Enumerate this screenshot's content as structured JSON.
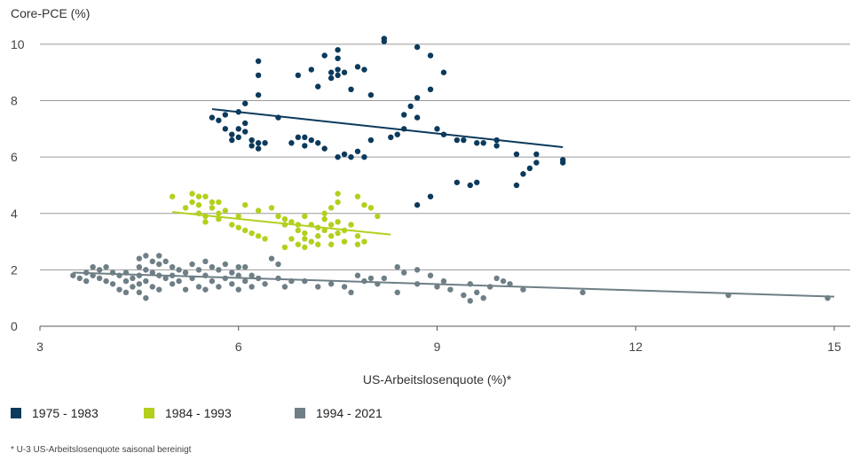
{
  "chart_data": {
    "type": "scatter",
    "title": "",
    "ylabel": "Core-PCE (%)",
    "xlabel": "US-Arbeitslosenquote (%)*",
    "footnote": "* U-3 US-Arbeitslosenquote saisonal bereinigt",
    "xlim": [
      3,
      15
    ],
    "ylim": [
      0,
      10.5
    ],
    "xticks": [
      "3",
      "6",
      "9",
      "12",
      "15"
    ],
    "yticks": [
      "0",
      "2",
      "4",
      "6",
      "8",
      "10"
    ],
    "grid": "horizontal",
    "legend_position": "bottom-left",
    "series": [
      {
        "name": "1975 - 1983",
        "color": "#0b3a5c",
        "trendline": [
          [
            5.6,
            7.7
          ],
          [
            10.9,
            6.35
          ]
        ],
        "points": [
          [
            5.6,
            7.4
          ],
          [
            5.7,
            7.3
          ],
          [
            5.8,
            7.5
          ],
          [
            5.8,
            7.0
          ],
          [
            5.9,
            6.8
          ],
          [
            5.9,
            6.6
          ],
          [
            6.0,
            7.6
          ],
          [
            6.0,
            7.0
          ],
          [
            6.0,
            6.7
          ],
          [
            6.1,
            7.9
          ],
          [
            6.1,
            7.2
          ],
          [
            6.1,
            6.9
          ],
          [
            6.2,
            6.6
          ],
          [
            6.2,
            6.4
          ],
          [
            6.3,
            6.5
          ],
          [
            6.3,
            6.3
          ],
          [
            6.3,
            8.2
          ],
          [
            6.3,
            8.9
          ],
          [
            6.3,
            9.4
          ],
          [
            6.4,
            6.5
          ],
          [
            6.6,
            7.4
          ],
          [
            6.8,
            6.5
          ],
          [
            6.9,
            6.7
          ],
          [
            6.9,
            8.9
          ],
          [
            7.0,
            6.4
          ],
          [
            7.0,
            6.7
          ],
          [
            7.1,
            6.6
          ],
          [
            7.1,
            9.1
          ],
          [
            7.2,
            6.5
          ],
          [
            7.2,
            8.5
          ],
          [
            7.3,
            9.6
          ],
          [
            7.3,
            6.3
          ],
          [
            7.4,
            9.0
          ],
          [
            7.4,
            8.8
          ],
          [
            7.5,
            9.8
          ],
          [
            7.5,
            9.5
          ],
          [
            7.5,
            9.1
          ],
          [
            7.5,
            8.9
          ],
          [
            7.5,
            6.0
          ],
          [
            7.6,
            6.1
          ],
          [
            7.6,
            9.0
          ],
          [
            7.7,
            6.0
          ],
          [
            7.7,
            8.4
          ],
          [
            7.8,
            9.2
          ],
          [
            7.8,
            6.2
          ],
          [
            7.9,
            6.0
          ],
          [
            7.9,
            9.1
          ],
          [
            8.0,
            8.2
          ],
          [
            8.0,
            6.6
          ],
          [
            8.2,
            10.2
          ],
          [
            8.2,
            10.1
          ],
          [
            8.3,
            6.7
          ],
          [
            8.4,
            6.8
          ],
          [
            8.5,
            7.5
          ],
          [
            8.5,
            7.0
          ],
          [
            8.6,
            7.8
          ],
          [
            8.7,
            7.4
          ],
          [
            8.7,
            8.1
          ],
          [
            8.7,
            9.9
          ],
          [
            8.9,
            8.4
          ],
          [
            8.9,
            9.6
          ],
          [
            9.0,
            7.0
          ],
          [
            9.1,
            9.0
          ],
          [
            9.1,
            6.8
          ],
          [
            9.3,
            6.6
          ],
          [
            9.4,
            6.6
          ],
          [
            9.6,
            6.5
          ],
          [
            9.7,
            6.5
          ],
          [
            9.9,
            6.6
          ],
          [
            9.9,
            6.4
          ],
          [
            10.2,
            6.1
          ],
          [
            10.2,
            5.0
          ],
          [
            10.3,
            5.4
          ],
          [
            10.4,
            5.6
          ],
          [
            10.5,
            6.1
          ],
          [
            10.5,
            5.8
          ],
          [
            10.9,
            5.9
          ],
          [
            10.9,
            5.8
          ],
          [
            8.7,
            4.3
          ],
          [
            8.9,
            4.6
          ],
          [
            9.3,
            5.1
          ],
          [
            9.5,
            5.0
          ],
          [
            9.6,
            5.1
          ]
        ]
      },
      {
        "name": "1984 - 1993",
        "color": "#b4cf1d",
        "trendline": [
          [
            5.0,
            4.05
          ],
          [
            8.3,
            3.25
          ]
        ],
        "points": [
          [
            5.0,
            4.6
          ],
          [
            5.2,
            4.2
          ],
          [
            5.3,
            4.7
          ],
          [
            5.3,
            4.4
          ],
          [
            5.4,
            4.6
          ],
          [
            5.4,
            4.3
          ],
          [
            5.4,
            4.0
          ],
          [
            5.5,
            3.9
          ],
          [
            5.5,
            3.7
          ],
          [
            5.5,
            4.6
          ],
          [
            5.6,
            4.4
          ],
          [
            5.6,
            4.2
          ],
          [
            5.7,
            4.0
          ],
          [
            5.7,
            3.8
          ],
          [
            5.7,
            4.4
          ],
          [
            5.8,
            4.1
          ],
          [
            5.9,
            3.6
          ],
          [
            6.0,
            3.5
          ],
          [
            6.0,
            3.9
          ],
          [
            6.1,
            3.4
          ],
          [
            6.1,
            4.3
          ],
          [
            6.2,
            3.3
          ],
          [
            6.3,
            3.2
          ],
          [
            6.3,
            4.1
          ],
          [
            6.4,
            3.1
          ],
          [
            6.5,
            4.2
          ],
          [
            6.6,
            3.9
          ],
          [
            6.7,
            3.8
          ],
          [
            6.7,
            3.6
          ],
          [
            6.7,
            2.8
          ],
          [
            6.8,
            3.1
          ],
          [
            6.8,
            3.7
          ],
          [
            6.9,
            2.9
          ],
          [
            6.9,
            3.4
          ],
          [
            6.9,
            3.6
          ],
          [
            7.0,
            3.3
          ],
          [
            7.0,
            3.1
          ],
          [
            7.0,
            3.9
          ],
          [
            7.0,
            2.8
          ],
          [
            7.1,
            3.6
          ],
          [
            7.1,
            3.0
          ],
          [
            7.2,
            3.5
          ],
          [
            7.2,
            3.2
          ],
          [
            7.2,
            2.9
          ],
          [
            7.3,
            3.8
          ],
          [
            7.3,
            3.4
          ],
          [
            7.3,
            4.0
          ],
          [
            7.4,
            3.6
          ],
          [
            7.4,
            3.2
          ],
          [
            7.4,
            2.9
          ],
          [
            7.4,
            4.2
          ],
          [
            7.5,
            3.7
          ],
          [
            7.5,
            3.3
          ],
          [
            7.5,
            4.7
          ],
          [
            7.5,
            4.4
          ],
          [
            7.6,
            3.4
          ],
          [
            7.6,
            3.0
          ],
          [
            7.7,
            3.6
          ],
          [
            7.8,
            3.2
          ],
          [
            7.8,
            2.9
          ],
          [
            7.8,
            4.6
          ],
          [
            7.9,
            4.3
          ],
          [
            7.9,
            3.0
          ],
          [
            8.0,
            4.2
          ],
          [
            8.1,
            3.9
          ]
        ]
      },
      {
        "name": "1994 - 2021",
        "color": "#6e7f86",
        "trendline": [
          [
            3.5,
            1.9
          ],
          [
            15.0,
            1.05
          ]
        ],
        "points": [
          [
            3.5,
            1.8
          ],
          [
            3.6,
            1.7
          ],
          [
            3.7,
            1.9
          ],
          [
            3.7,
            1.6
          ],
          [
            3.8,
            2.1
          ],
          [
            3.8,
            1.8
          ],
          [
            3.9,
            2.0
          ],
          [
            3.9,
            1.7
          ],
          [
            4.0,
            2.1
          ],
          [
            4.0,
            1.6
          ],
          [
            4.1,
            1.9
          ],
          [
            4.1,
            1.5
          ],
          [
            4.2,
            1.8
          ],
          [
            4.2,
            1.3
          ],
          [
            4.3,
            1.9
          ],
          [
            4.3,
            1.6
          ],
          [
            4.3,
            1.2
          ],
          [
            4.4,
            1.7
          ],
          [
            4.4,
            1.4
          ],
          [
            4.5,
            2.4
          ],
          [
            4.5,
            2.1
          ],
          [
            4.5,
            1.8
          ],
          [
            4.5,
            1.5
          ],
          [
            4.5,
            1.2
          ],
          [
            4.6,
            2.5
          ],
          [
            4.6,
            2.0
          ],
          [
            4.6,
            1.6
          ],
          [
            4.6,
            1.0
          ],
          [
            4.7,
            2.3
          ],
          [
            4.7,
            1.9
          ],
          [
            4.7,
            1.4
          ],
          [
            4.8,
            2.5
          ],
          [
            4.8,
            2.2
          ],
          [
            4.8,
            1.8
          ],
          [
            4.8,
            1.3
          ],
          [
            4.9,
            2.3
          ],
          [
            4.9,
            1.7
          ],
          [
            5.0,
            2.1
          ],
          [
            5.0,
            1.8
          ],
          [
            5.0,
            1.5
          ],
          [
            5.1,
            2.0
          ],
          [
            5.1,
            1.6
          ],
          [
            5.2,
            1.9
          ],
          [
            5.2,
            1.3
          ],
          [
            5.3,
            2.2
          ],
          [
            5.3,
            1.7
          ],
          [
            5.4,
            2.0
          ],
          [
            5.4,
            1.4
          ],
          [
            5.5,
            2.3
          ],
          [
            5.5,
            1.8
          ],
          [
            5.5,
            1.3
          ],
          [
            5.6,
            2.1
          ],
          [
            5.6,
            1.6
          ],
          [
            5.7,
            2.0
          ],
          [
            5.7,
            1.4
          ],
          [
            5.8,
            2.2
          ],
          [
            5.8,
            1.7
          ],
          [
            5.9,
            1.9
          ],
          [
            5.9,
            1.5
          ],
          [
            6.0,
            2.1
          ],
          [
            6.0,
            1.8
          ],
          [
            6.0,
            1.3
          ],
          [
            6.1,
            2.1
          ],
          [
            6.1,
            1.6
          ],
          [
            6.2,
            1.8
          ],
          [
            6.2,
            1.4
          ],
          [
            6.3,
            1.7
          ],
          [
            6.4,
            1.5
          ],
          [
            6.5,
            2.4
          ],
          [
            6.6,
            2.2
          ],
          [
            6.6,
            1.7
          ],
          [
            6.7,
            1.4
          ],
          [
            6.8,
            1.6
          ],
          [
            7.0,
            1.6
          ],
          [
            7.2,
            1.4
          ],
          [
            7.4,
            1.5
          ],
          [
            7.6,
            1.4
          ],
          [
            7.7,
            1.2
          ],
          [
            7.8,
            1.8
          ],
          [
            7.9,
            1.6
          ],
          [
            8.0,
            1.7
          ],
          [
            8.1,
            1.5
          ],
          [
            8.2,
            1.7
          ],
          [
            8.4,
            1.2
          ],
          [
            8.4,
            2.1
          ],
          [
            8.5,
            1.9
          ],
          [
            8.7,
            2.0
          ],
          [
            8.7,
            1.5
          ],
          [
            8.9,
            1.8
          ],
          [
            9.0,
            1.4
          ],
          [
            9.1,
            1.6
          ],
          [
            9.2,
            1.3
          ],
          [
            9.4,
            1.1
          ],
          [
            9.5,
            1.5
          ],
          [
            9.5,
            0.9
          ],
          [
            9.6,
            1.2
          ],
          [
            9.7,
            1.0
          ],
          [
            9.8,
            1.4
          ],
          [
            9.9,
            1.7
          ],
          [
            10.0,
            1.6
          ],
          [
            10.1,
            1.5
          ],
          [
            10.3,
            1.3
          ],
          [
            11.2,
            1.2
          ],
          [
            13.4,
            1.1
          ],
          [
            14.9,
            1.0
          ]
        ]
      }
    ]
  }
}
